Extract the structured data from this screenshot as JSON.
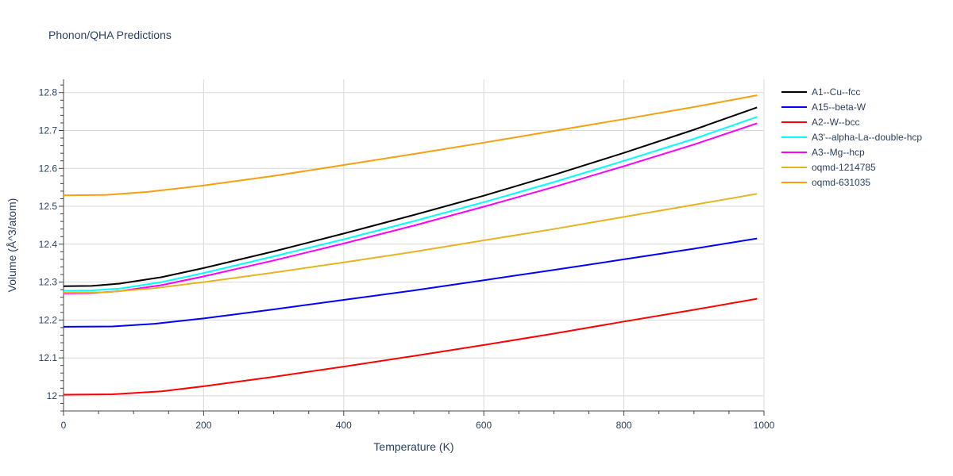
{
  "chart_data": {
    "type": "line",
    "title": "Phonon/QHA Predictions",
    "xlabel": "Temperature (K)",
    "ylabel": "Volume (Å^3/atom)",
    "xlim": [
      0,
      1000
    ],
    "ylim": [
      11.96,
      12.835
    ],
    "xticks": [
      0,
      200,
      400,
      600,
      800,
      1000
    ],
    "yticks": [
      12,
      12.1,
      12.2,
      12.3,
      12.4,
      12.5,
      12.6,
      12.7,
      12.8
    ],
    "xtick_labels": [
      "0",
      "200",
      "400",
      "600",
      "800",
      "1000"
    ],
    "ytick_labels": [
      "12",
      "12.1",
      "12.2",
      "12.3",
      "12.4",
      "12.5",
      "12.6",
      "12.7",
      "12.8"
    ],
    "grid": true,
    "legend_position": "right",
    "series": [
      {
        "name": "A1--Cu--fcc",
        "color": "#000000",
        "x": [
          0,
          40,
          80,
          140,
          200,
          300,
          400,
          500,
          600,
          700,
          800,
          900,
          990
        ],
        "y": [
          12.289,
          12.29,
          12.296,
          12.313,
          12.337,
          12.381,
          12.428,
          12.477,
          12.528,
          12.583,
          12.641,
          12.702,
          12.761
        ]
      },
      {
        "name": "A15--beta-W",
        "color": "#0000ff",
        "x": [
          0,
          70,
          130,
          200,
          300,
          400,
          500,
          600,
          700,
          800,
          900,
          990
        ],
        "y": [
          12.182,
          12.183,
          12.19,
          12.204,
          12.228,
          12.253,
          12.278,
          12.305,
          12.332,
          12.36,
          12.388,
          12.415
        ]
      },
      {
        "name": "A2--W--bcc",
        "color": "#ff0000",
        "x": [
          0,
          70,
          140,
          200,
          300,
          400,
          500,
          600,
          700,
          800,
          900,
          990
        ],
        "y": [
          12.003,
          12.004,
          12.012,
          12.025,
          12.05,
          12.077,
          12.105,
          12.134,
          12.164,
          12.196,
          12.227,
          12.256
        ]
      },
      {
        "name": "A3'--alpha-La--double-hcp",
        "color": "#00ffff",
        "x": [
          0,
          40,
          80,
          140,
          200,
          300,
          400,
          500,
          600,
          700,
          800,
          900,
          990
        ],
        "y": [
          12.277,
          12.278,
          12.283,
          12.3,
          12.324,
          12.368,
          12.413,
          12.461,
          12.511,
          12.564,
          12.62,
          12.678,
          12.736
        ]
      },
      {
        "name": "A3--Mg--hcp",
        "color": "#ff00ff",
        "x": [
          0,
          40,
          80,
          140,
          200,
          300,
          400,
          500,
          600,
          700,
          800,
          900,
          990
        ],
        "y": [
          12.27,
          12.271,
          12.276,
          12.292,
          12.315,
          12.357,
          12.402,
          12.449,
          12.499,
          12.551,
          12.606,
          12.663,
          12.719
        ]
      },
      {
        "name": "oqmd-1214785",
        "color": "#e6b422",
        "x": [
          0,
          60,
          130,
          200,
          300,
          400,
          500,
          600,
          700,
          800,
          900,
          990
        ],
        "y": [
          12.272,
          12.273,
          12.284,
          12.3,
          12.325,
          12.352,
          12.38,
          12.41,
          12.44,
          12.472,
          12.504,
          12.533
        ]
      },
      {
        "name": "oqmd-631035",
        "color": "#f5a00f",
        "x": [
          0,
          60,
          120,
          200,
          300,
          400,
          500,
          600,
          700,
          800,
          900,
          990
        ],
        "y": [
          12.529,
          12.53,
          12.538,
          12.555,
          12.58,
          12.609,
          12.638,
          12.668,
          12.699,
          12.73,
          12.762,
          12.793
        ]
      }
    ]
  }
}
